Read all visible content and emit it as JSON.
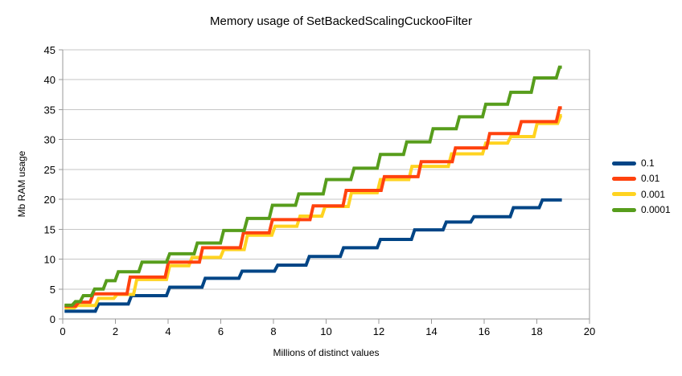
{
  "chart_data": {
    "type": "line",
    "line_style": "step",
    "title": "Memory usage of SetBackedScalingCuckooFilter",
    "xlabel": "Millions of distinct values",
    "ylabel": "Mb RAM usage",
    "xlim": [
      0,
      20
    ],
    "ylim": [
      0,
      45
    ],
    "x_ticks": [
      0,
      2,
      4,
      6,
      8,
      10,
      12,
      14,
      16,
      18,
      20
    ],
    "x_tick_labels": [
      "0",
      "2",
      "4",
      "6",
      "8",
      "10",
      "12",
      "14",
      "16",
      "18",
      "20"
    ],
    "y_ticks": [
      0,
      5,
      10,
      15,
      20,
      25,
      30,
      35,
      40,
      45
    ],
    "y_tick_labels": [
      "0",
      "5",
      "10",
      "15",
      "20",
      "25",
      "30",
      "35",
      "40",
      "45"
    ],
    "grid": "horizontal",
    "legend_position": "right-middle",
    "x_start": 0.07,
    "x_end": 18.95,
    "background_color": "#ffffff",
    "grid_color": "#c6c6c6",
    "axis_color": "#9a9a9a",
    "text_color": "#000000",
    "series": [
      {
        "name": "0.1",
        "color": "#004586",
        "steps": [
          [
            0.07,
            1.3
          ],
          [
            1.3,
            2.5
          ],
          [
            2.55,
            3.9
          ],
          [
            4.0,
            5.3
          ],
          [
            5.35,
            6.8
          ],
          [
            6.75,
            8.0
          ],
          [
            8.1,
            9.0
          ],
          [
            9.3,
            10.45
          ],
          [
            10.6,
            11.9
          ],
          [
            12.0,
            13.3
          ],
          [
            13.3,
            14.9
          ],
          [
            14.5,
            16.2
          ],
          [
            15.55,
            17.1
          ],
          [
            17.05,
            18.6
          ],
          [
            18.15,
            19.9
          ]
        ]
      },
      {
        "name": "0.01",
        "color": "#FF420E",
        "steps": [
          [
            0.07,
            2.15
          ],
          [
            0.55,
            2.8
          ],
          [
            1.1,
            4.2
          ],
          [
            2.5,
            7.0
          ],
          [
            3.95,
            9.5
          ],
          [
            5.25,
            11.9
          ],
          [
            6.8,
            14.4
          ],
          [
            7.9,
            16.6
          ],
          [
            9.45,
            18.9
          ],
          [
            10.7,
            21.5
          ],
          [
            12.15,
            23.8
          ],
          [
            13.55,
            26.3
          ],
          [
            14.85,
            28.6
          ],
          [
            16.15,
            31.0
          ],
          [
            17.35,
            33.0
          ],
          [
            18.8,
            35.3
          ]
        ]
      },
      {
        "name": "0.001",
        "color": "#FFD320",
        "steps": [
          [
            0.07,
            1.85
          ],
          [
            0.5,
            2.25
          ],
          [
            1.3,
            3.45
          ],
          [
            2.0,
            4.1
          ],
          [
            2.75,
            6.6
          ],
          [
            4.0,
            8.9
          ],
          [
            4.85,
            10.3
          ],
          [
            6.05,
            11.6
          ],
          [
            6.95,
            14.0
          ],
          [
            8.0,
            15.5
          ],
          [
            8.95,
            17.2
          ],
          [
            9.9,
            18.8
          ],
          [
            10.9,
            21.1
          ],
          [
            12.0,
            23.3
          ],
          [
            13.2,
            25.5
          ],
          [
            14.7,
            27.6
          ],
          [
            16.0,
            29.4
          ],
          [
            16.95,
            30.5
          ],
          [
            17.95,
            32.7
          ],
          [
            18.85,
            34.0
          ]
        ]
      },
      {
        "name": "0.0001",
        "color": "#579D1C",
        "steps": [
          [
            0.07,
            2.3
          ],
          [
            0.42,
            2.9
          ],
          [
            0.72,
            3.9
          ],
          [
            1.15,
            5.0
          ],
          [
            1.6,
            6.4
          ],
          [
            2.05,
            7.9
          ],
          [
            2.95,
            9.5
          ],
          [
            4.0,
            10.9
          ],
          [
            5.05,
            12.7
          ],
          [
            6.05,
            14.8
          ],
          [
            6.95,
            16.8
          ],
          [
            7.9,
            19.0
          ],
          [
            8.9,
            20.9
          ],
          [
            9.95,
            23.3
          ],
          [
            11.0,
            25.2
          ],
          [
            12.0,
            27.5
          ],
          [
            13.0,
            29.6
          ],
          [
            14.0,
            31.8
          ],
          [
            15.0,
            33.8
          ],
          [
            16.0,
            35.9
          ],
          [
            16.95,
            37.9
          ],
          [
            17.85,
            40.3
          ],
          [
            18.8,
            42.1
          ]
        ]
      }
    ],
    "draw_order": [
      0,
      2,
      1,
      3
    ]
  }
}
